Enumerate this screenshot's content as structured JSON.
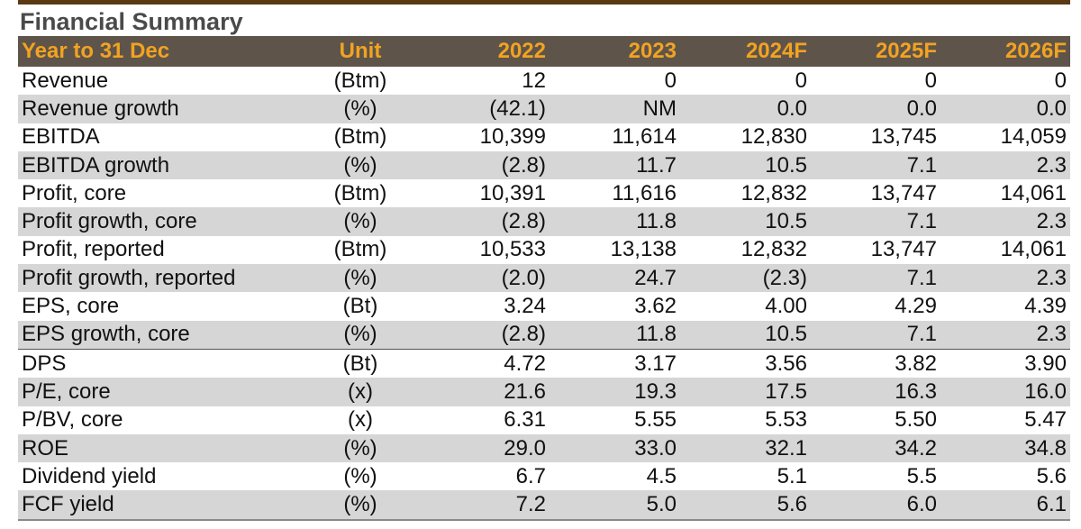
{
  "title": "Financial Summary",
  "header": [
    "Year to 31 Dec",
    "Unit",
    "2022",
    "2023",
    "2024F",
    "2025F",
    "2026F"
  ],
  "rows": [
    [
      "Revenue",
      "(Btm)",
      "12",
      "0",
      "0",
      "0",
      "0"
    ],
    [
      "Revenue growth",
      "(%)",
      "(42.1)",
      "NM",
      "0.0",
      "0.0",
      "0.0"
    ],
    [
      "EBITDA",
      "(Btm)",
      "10,399",
      "11,614",
      "12,830",
      "13,745",
      "14,059"
    ],
    [
      "EBITDA growth",
      "(%)",
      "(2.8)",
      "11.7",
      "10.5",
      "7.1",
      "2.3"
    ],
    [
      "Profit, core",
      "(Btm)",
      "10,391",
      "11,616",
      "12,832",
      "13,747",
      "14,061"
    ],
    [
      "Profit growth, core",
      "(%)",
      "(2.8)",
      "11.8",
      "10.5",
      "7.1",
      "2.3"
    ],
    [
      "Profit, reported",
      "(Btm)",
      "10,533",
      "13,138",
      "12,832",
      "13,747",
      "14,061"
    ],
    [
      "Profit growth, reported",
      "(%)",
      "(2.0)",
      "24.7",
      "(2.3)",
      "7.1",
      "2.3"
    ],
    [
      "EPS, core",
      "(Bt)",
      "3.24",
      "3.62",
      "4.00",
      "4.29",
      "4.39"
    ],
    [
      "EPS growth, core",
      "(%)",
      "(2.8)",
      "11.8",
      "10.5",
      "7.1",
      "2.3"
    ],
    [
      "DPS",
      "(Bt)",
      "4.72",
      "3.17",
      "3.56",
      "3.82",
      "3.90"
    ],
    [
      "P/E, core",
      "(x)",
      "21.6",
      "19.3",
      "17.5",
      "16.3",
      "16.0"
    ],
    [
      "P/BV, core",
      "(x)",
      "6.31",
      "5.55",
      "5.53",
      "5.50",
      "5.47"
    ],
    [
      "ROE",
      "(%)",
      "29.0",
      "33.0",
      "32.1",
      "34.2",
      "34.8"
    ],
    [
      "Dividend yield",
      "(%)",
      "6.7",
      "4.5",
      "5.1",
      "5.5",
      "5.6"
    ],
    [
      "FCF yield",
      "(%)",
      "7.2",
      "5.0",
      "5.6",
      "6.0",
      "6.1"
    ]
  ]
}
